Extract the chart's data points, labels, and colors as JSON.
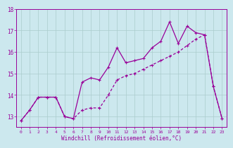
{
  "xlabel": "Windchill (Refroidissement éolien,°C)",
  "bg_color": "#cce8ee",
  "grid_color": "#aacccc",
  "line_color": "#990099",
  "x_values": [
    0,
    1,
    2,
    3,
    4,
    5,
    6,
    7,
    8,
    9,
    10,
    11,
    12,
    13,
    14,
    15,
    16,
    17,
    18,
    19,
    20,
    21,
    22,
    23
  ],
  "line1": [
    12.8,
    13.3,
    13.9,
    13.9,
    13.9,
    13.0,
    12.9,
    14.6,
    14.8,
    14.7,
    15.3,
    16.2,
    15.5,
    15.6,
    15.7,
    16.2,
    16.5,
    17.4,
    16.4,
    17.2,
    16.9,
    16.8,
    14.4,
    12.9
  ],
  "line2": [
    12.8,
    13.3,
    13.9,
    13.9,
    13.9,
    13.0,
    12.9,
    13.3,
    13.4,
    13.4,
    14.0,
    14.7,
    14.9,
    15.0,
    15.2,
    15.4,
    15.6,
    15.8,
    16.0,
    16.3,
    16.6,
    16.8,
    14.4,
    12.9
  ],
  "ylim_min": 12.5,
  "ylim_max": 18.0,
  "ytick_min": 13,
  "ytick_max": 18,
  "xlim_min": -0.5,
  "xlim_max": 23.5
}
